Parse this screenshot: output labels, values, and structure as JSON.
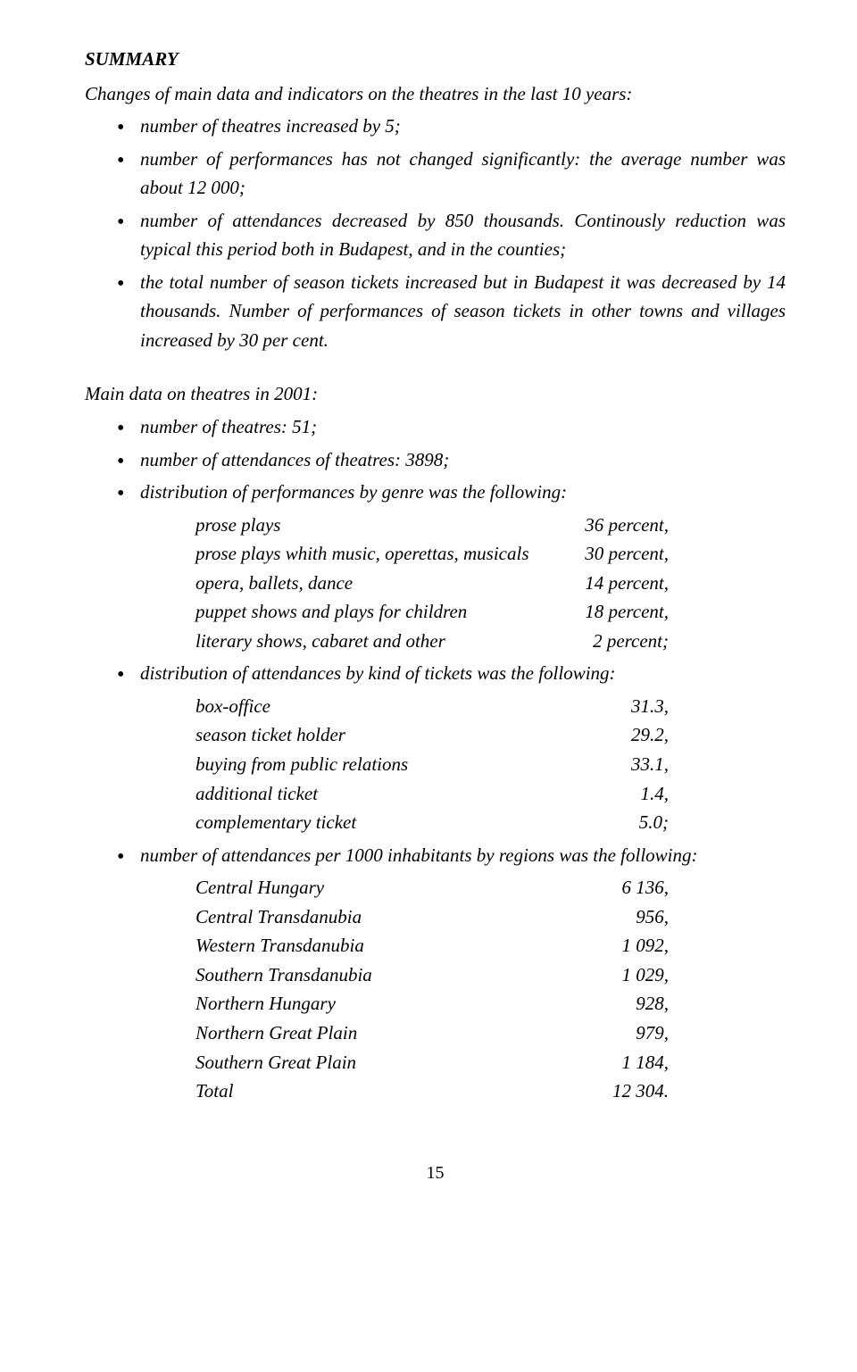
{
  "heading": "SUMMARY",
  "intro": "Changes of main data and indicators on the theatres in the last 10 years:",
  "bullets1": [
    "number of theatres increased by 5;",
    "number of performances has not changed significantly: the average number was about 12 000;",
    "number of attendances decreased by 850 thousands. Continously reduction was typical this period both in Budapest, and in the counties;",
    "the total number of season tickets increased but in Budapest it was decreased by 14 thousands. Number of performances of season tickets in other towns and villages increased by 30 per cent."
  ],
  "section2_title": "Main data on theatres in 2001:",
  "bullets2": [
    {
      "text": "number of theatres: 51;"
    },
    {
      "text": "number of attendances of theatres: 3898;"
    },
    {
      "text": "distribution of performances by genre was the following:",
      "rows": [
        {
          "label": "prose plays",
          "value": "36 percent,"
        },
        {
          "label": "prose plays whith music, operettas, musicals",
          "value": "30 percent,"
        },
        {
          "label": "opera, ballets, dance",
          "value": "14 percent,"
        },
        {
          "label": "puppet shows and plays for children",
          "value": "18 percent,"
        },
        {
          "label": "literary shows, cabaret and other",
          "value": "2 percent;"
        }
      ]
    },
    {
      "text": "distribution of attendances by kind of tickets was the following:",
      "rows": [
        {
          "label": "box-office",
          "value": "31.3,"
        },
        {
          "label": "season ticket holder",
          "value": "29.2,"
        },
        {
          "label": "buying from public relations",
          "value": "33.1,"
        },
        {
          "label": "additional ticket",
          "value": "1.4,"
        },
        {
          "label": "complementary ticket",
          "value": "5.0;"
        }
      ]
    },
    {
      "text": "number of attendances per 1000 inhabitants by regions was the following:",
      "rows": [
        {
          "label": "Central Hungary",
          "value": "6 136,"
        },
        {
          "label": "Central Transdanubia",
          "value": "956,"
        },
        {
          "label": "Western Transdanubia",
          "value": "1 092,"
        },
        {
          "label": "Southern Transdanubia",
          "value": "1 029,"
        },
        {
          "label": "Northern Hungary",
          "value": "928,"
        },
        {
          "label": "Northern Great Plain",
          "value": "979,"
        },
        {
          "label": "Southern Great Plain",
          "value": "1 184,"
        },
        {
          "label": "Total",
          "value": "12 304."
        }
      ]
    }
  ],
  "page_number": "15"
}
